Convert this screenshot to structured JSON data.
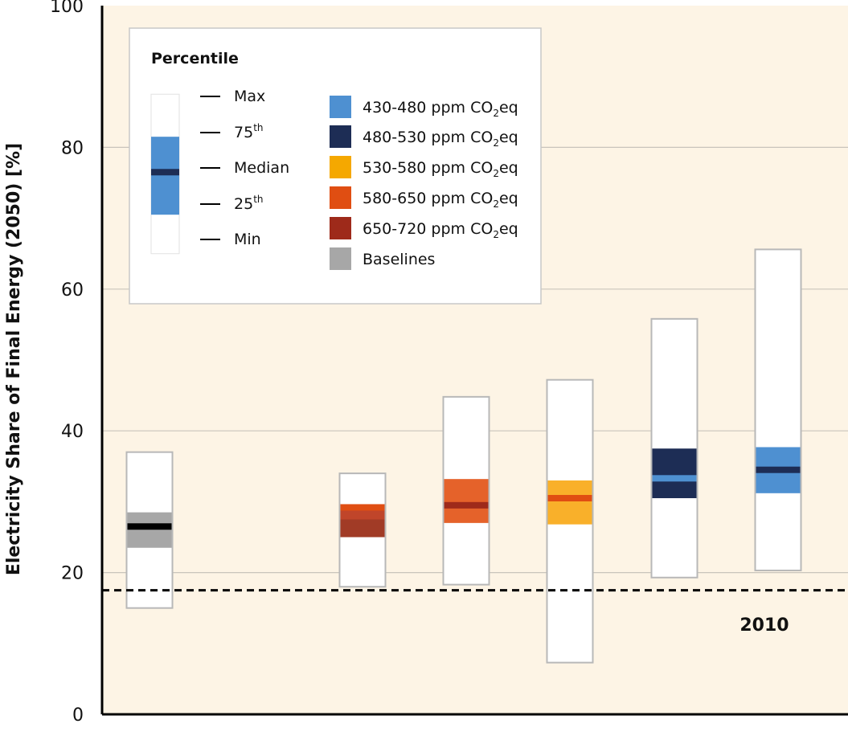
{
  "chart_data": {
    "type": "boxplot",
    "ylabel": "Electricity Share of Final Energy (2050) [%]",
    "ylim": [
      0,
      100
    ],
    "yticks": [
      0,
      20,
      40,
      60,
      80,
      100
    ],
    "grid": true,
    "legend_position": "top-left",
    "legend": {
      "title": "Percentile",
      "percentile_labels": [
        {
          "main": "Max",
          "sup": ""
        },
        {
          "main": "75",
          "sup": "th"
        },
        {
          "main": "Median",
          "sup": ""
        },
        {
          "main": "25",
          "sup": "th"
        },
        {
          "main": "Min",
          "sup": ""
        }
      ],
      "entries": [
        {
          "label": "430-480 ppm CO",
          "sub": "2",
          "suffix": "eq",
          "color": "#4e90d1"
        },
        {
          "label": "480-530 ppm CO",
          "sub": "2",
          "suffix": "eq",
          "color": "#1d2d55"
        },
        {
          "label": "530-580 ppm CO",
          "sub": "2",
          "suffix": "eq",
          "color": "#f5a800"
        },
        {
          "label": "580-650 ppm CO",
          "sub": "2",
          "suffix": "eq",
          "color": "#e04e12"
        },
        {
          "label": "650-720 ppm CO",
          "sub": "2",
          "suffix": "eq",
          "color": "#9e2a1a"
        },
        {
          "label": "Baselines",
          "sub": "",
          "suffix": "",
          "color": "#a7a7a7"
        }
      ]
    },
    "series": [
      {
        "name": "Baselines",
        "min": 15,
        "q1": 23.5,
        "median": 26.5,
        "q3": 28.5,
        "max": 37,
        "fill": "#a7a7a7",
        "median_color": "#000000"
      },
      {
        "name": "650-720 ppm CO2eq",
        "min": 18,
        "q1": 25,
        "median": 29.2,
        "q3": 29.5,
        "max": 34,
        "fill": "#a13b26",
        "median_color": "#e04e12",
        "secondary_fill": "#c0452a",
        "secondary_range": [
          27.5,
          29.5
        ]
      },
      {
        "name": "580-650 ppm CO2eq",
        "min": 18.3,
        "q1": 27,
        "median": 29.5,
        "q3": 33.2,
        "max": 44.8,
        "fill": "#e5622a",
        "median_color": "#9e2a1a"
      },
      {
        "name": "530-580 ppm CO2eq",
        "min": 7.3,
        "q1": 26.8,
        "median": 30.5,
        "q3": 33,
        "max": 47.2,
        "fill": "#f9b02a",
        "median_color": "#e04e12"
      },
      {
        "name": "480-530 ppm CO2eq",
        "min": 19.3,
        "q1": 30.5,
        "median": 33.3,
        "q3": 37.5,
        "max": 55.8,
        "fill": "#1d2d55",
        "median_color": "#4e90d1"
      },
      {
        "name": "430-480 ppm CO2eq",
        "min": 20.3,
        "q1": 31.2,
        "median": 34.5,
        "q3": 37.7,
        "max": 65.6,
        "fill": "#4e90d1",
        "median_color": "#1d2d55"
      }
    ],
    "reference_line": {
      "value": 17.5,
      "label": "2010"
    },
    "legend_example": {
      "min": 65,
      "q1": 70.5,
      "median": 76.5,
      "q3": 81.5,
      "max": 87.5,
      "fill": "#4e90d1",
      "median_color": "#1d2d55"
    }
  }
}
